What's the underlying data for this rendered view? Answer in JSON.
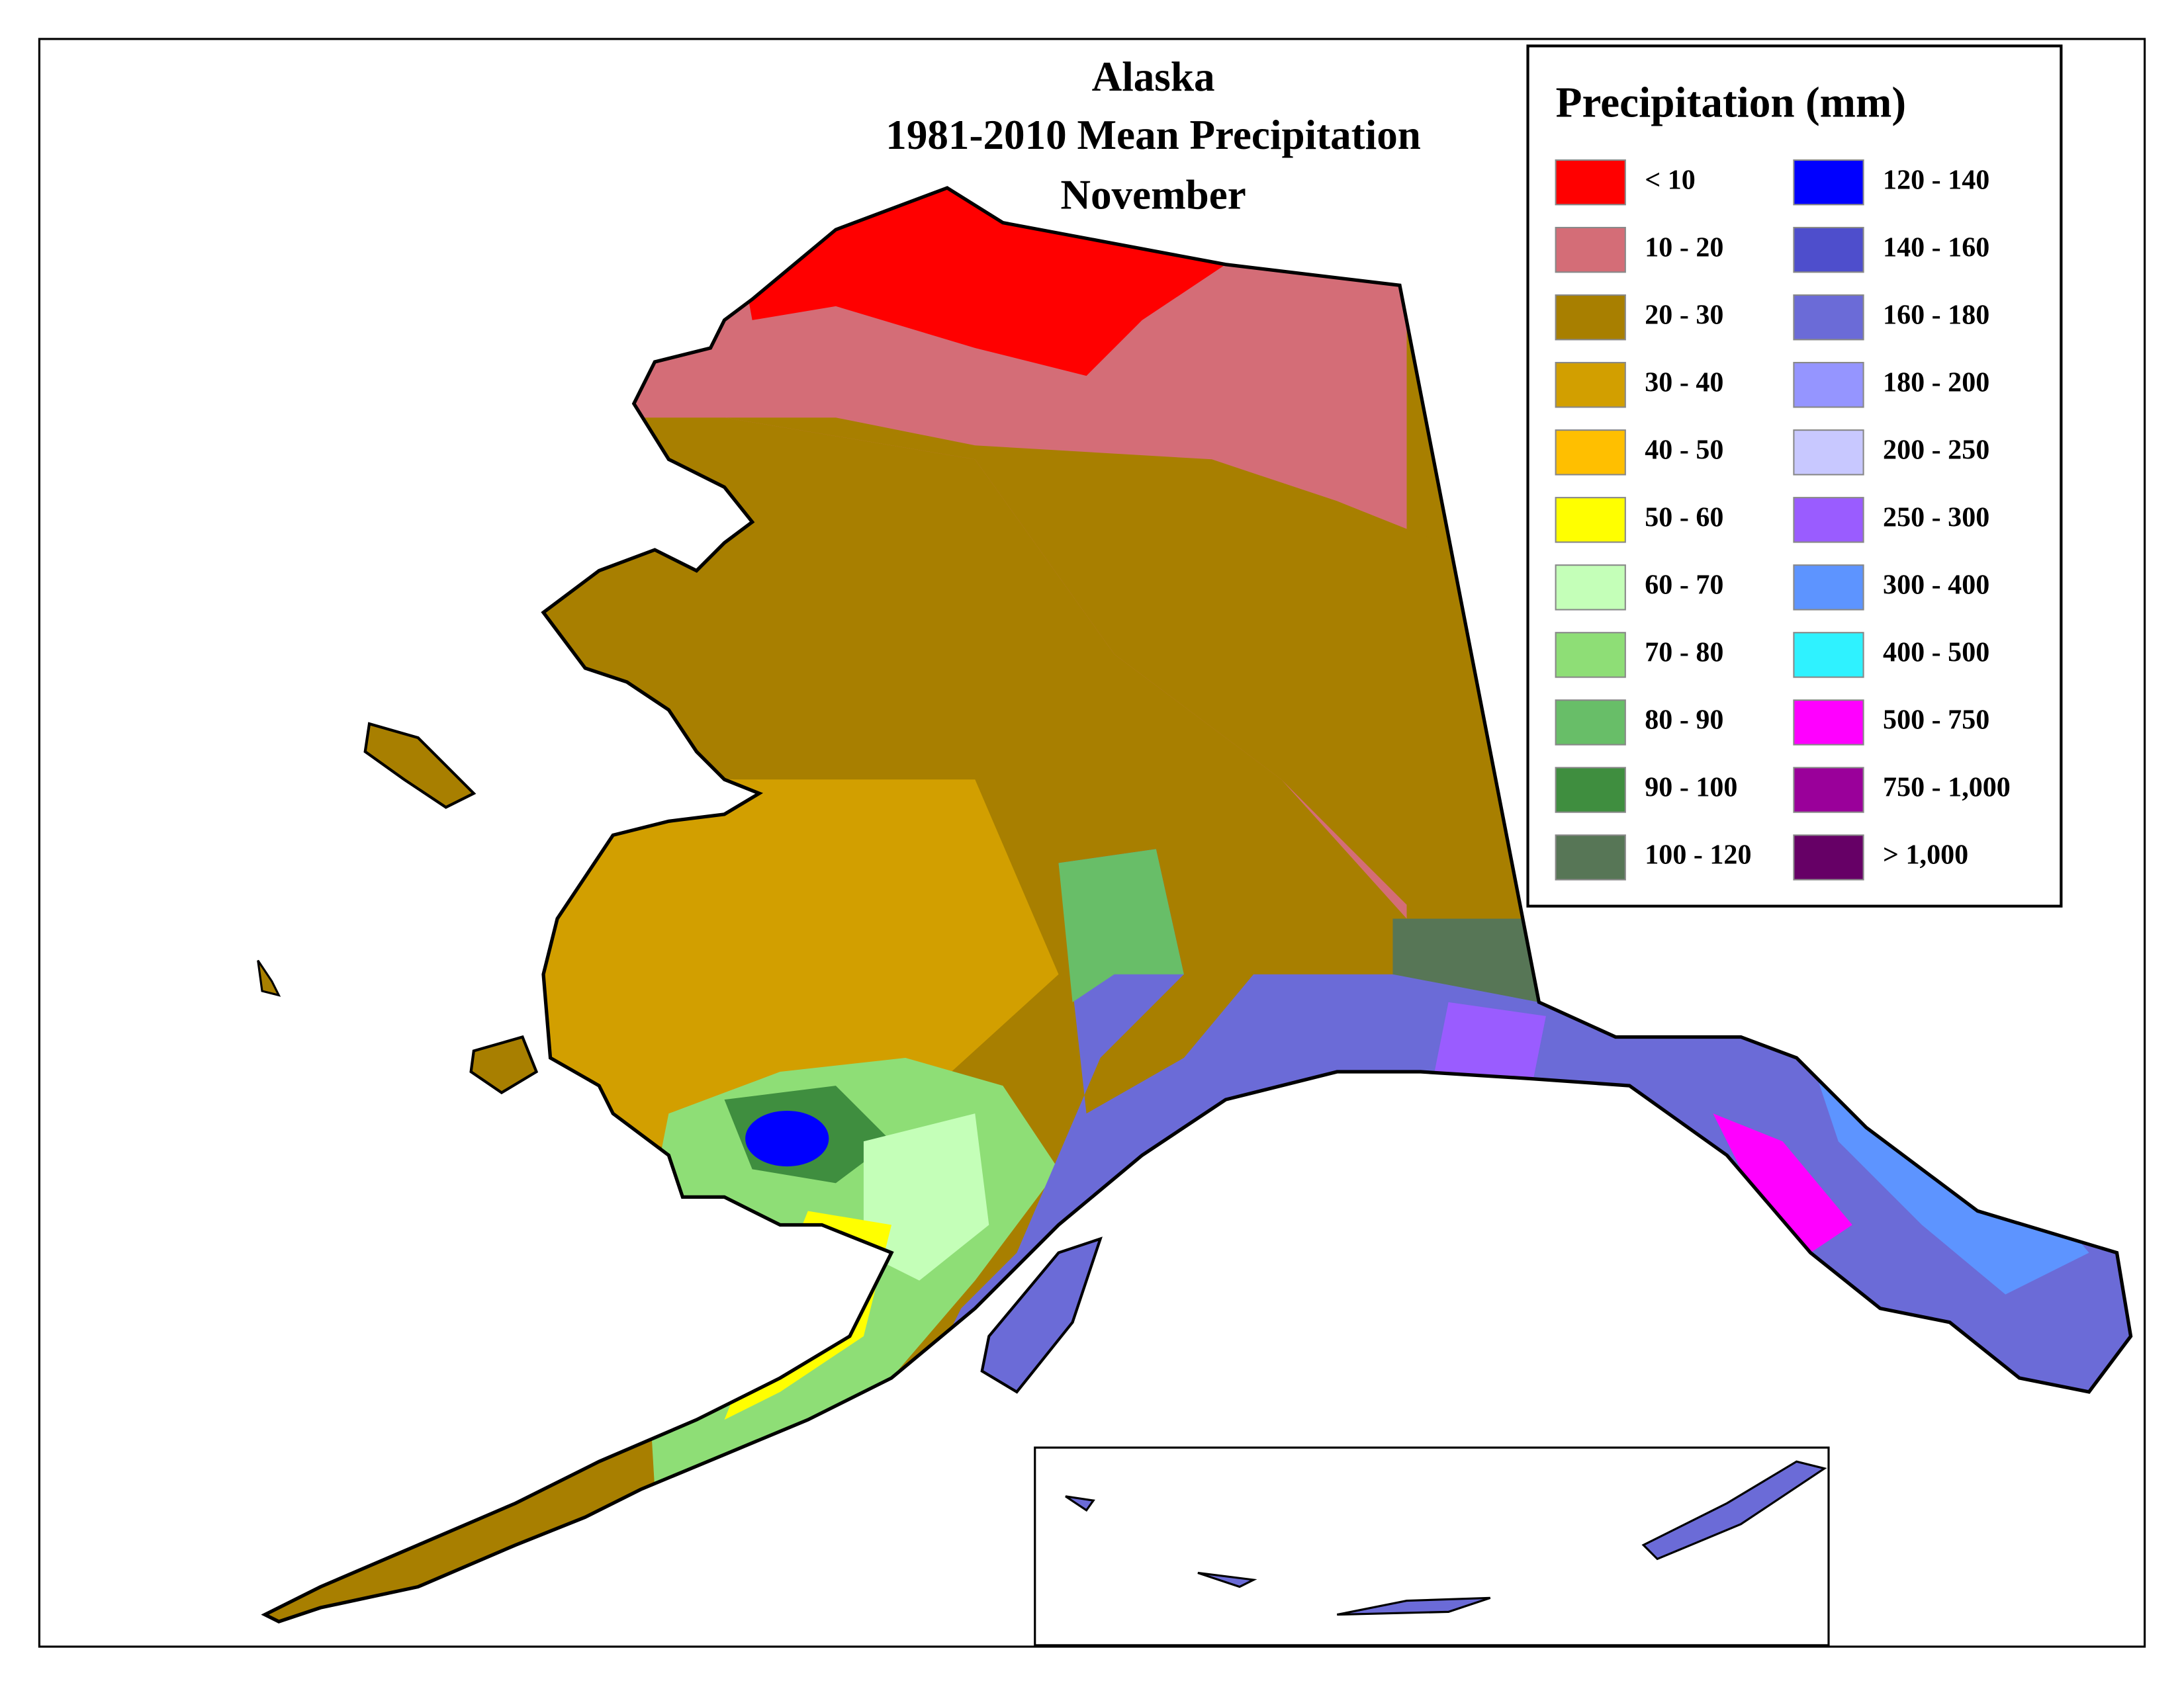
{
  "title": [
    "Alaska",
    "1981-2010 Mean Precipitation",
    "November"
  ],
  "legend": {
    "title": "Precipitation (mm)",
    "items": [
      {
        "label": "< 10",
        "color": "#ff0000"
      },
      {
        "label": "10 - 20",
        "color": "#d46d77"
      },
      {
        "label": "20 - 30",
        "color": "#a87f00"
      },
      {
        "label": "30 - 40",
        "color": "#d29f00"
      },
      {
        "label": "40 - 50",
        "color": "#ffbf00"
      },
      {
        "label": "50 - 60",
        "color": "#ffff00"
      },
      {
        "label": "60 - 70",
        "color": "#c4ffb8"
      },
      {
        "label": "70 - 80",
        "color": "#8ede76"
      },
      {
        "label": "80 - 90",
        "color": "#68be68"
      },
      {
        "label": "90 - 100",
        "color": "#3f8e3f"
      },
      {
        "label": "100 - 120",
        "color": "#577656"
      },
      {
        "label": "120 - 140",
        "color": "#0000ff"
      },
      {
        "label": "140 - 160",
        "color": "#4e4ecc"
      },
      {
        "label": "160 - 180",
        "color": "#6b6bd7"
      },
      {
        "label": "180 - 200",
        "color": "#9595ff"
      },
      {
        "label": "200 - 250",
        "color": "#c8c8ff"
      },
      {
        "label": "250 - 300",
        "color": "#9a5cff"
      },
      {
        "label": "300 - 400",
        "color": "#5d94ff"
      },
      {
        "label": "400 - 500",
        "color": "#2ff2ff"
      },
      {
        "label": "500 - 750",
        "color": "#ff00ff"
      },
      {
        "label": "750 - 1,000",
        "color": "#9a009a"
      },
      {
        "label": "> 1,000",
        "color": "#660066"
      }
    ]
  }
}
